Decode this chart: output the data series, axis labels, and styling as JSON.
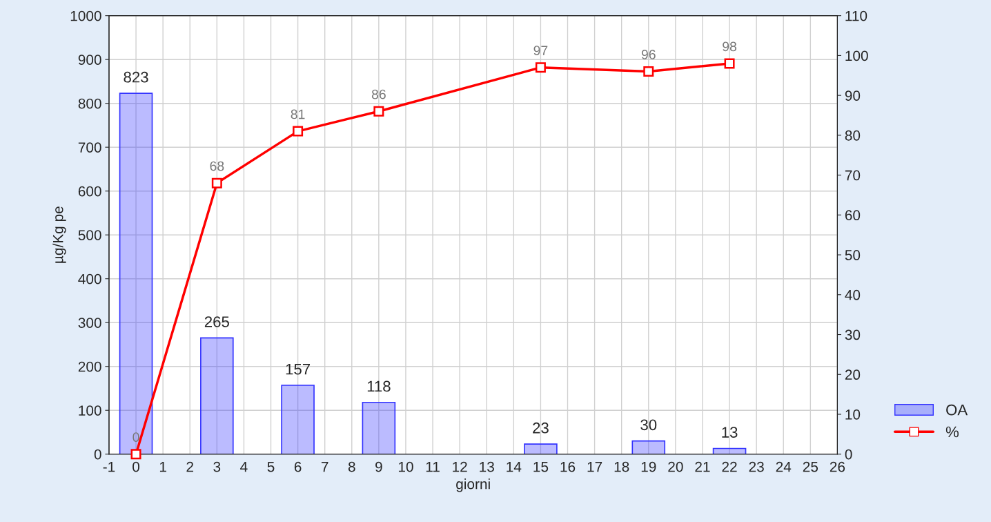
{
  "chart_data": {
    "type": "bar",
    "xlabel": "giorni",
    "ylabel": "µg/Kg pe",
    "xlim": [
      -1,
      26
    ],
    "xticks": [
      -1,
      0,
      1,
      2,
      3,
      4,
      5,
      6,
      7,
      8,
      9,
      10,
      11,
      12,
      13,
      14,
      15,
      16,
      17,
      18,
      19,
      20,
      21,
      22,
      23,
      24,
      25,
      26
    ],
    "ylim": [
      0,
      1000
    ],
    "yticks": [
      0,
      100,
      200,
      300,
      400,
      500,
      600,
      700,
      800,
      900,
      1000
    ],
    "y2lim": [
      0,
      110
    ],
    "y2ticks": [
      0,
      10,
      20,
      30,
      40,
      50,
      60,
      70,
      80,
      90,
      100,
      110
    ],
    "series": [
      {
        "name": "OA",
        "color": "#3333ff",
        "x": [
          0,
          3,
          6,
          9,
          15,
          19,
          22
        ],
        "values": [
          823,
          265,
          157,
          118,
          23,
          30,
          13
        ]
      },
      {
        "name": "%",
        "type": "line",
        "axis": "y2",
        "color": "#ff0000",
        "marker": "square",
        "x": [
          0,
          3,
          6,
          9,
          15,
          19,
          22
        ],
        "values": [
          0,
          68,
          81,
          86,
          97,
          96,
          98
        ]
      }
    ],
    "data_labels": true,
    "grid": true,
    "legend": "bottom right"
  }
}
